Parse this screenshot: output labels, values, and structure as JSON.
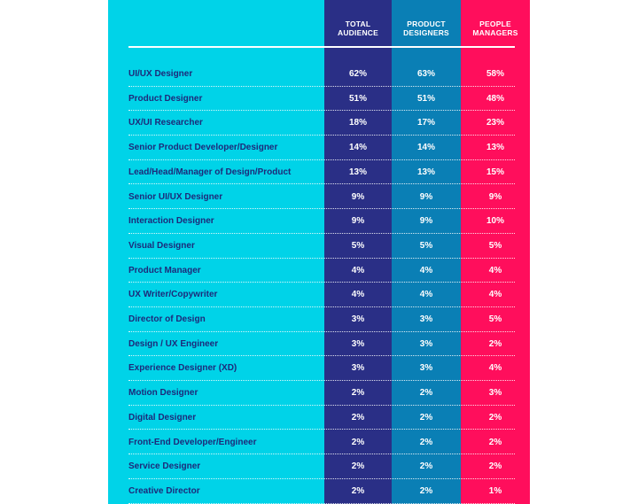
{
  "chart_data": {
    "type": "table",
    "columns": [
      {
        "key": "total",
        "label": "TOTAL\nAUDIENCE"
      },
      {
        "key": "prod",
        "label": "PRODUCT\nDESIGNERS"
      },
      {
        "key": "mgr",
        "label": "PEOPLE\nMANAGERS"
      }
    ],
    "rows": [
      {
        "role": "UI/UX Designer",
        "total": "62%",
        "prod": "63%",
        "mgr": "58%"
      },
      {
        "role": "Product Designer",
        "total": "51%",
        "prod": "51%",
        "mgr": "48%"
      },
      {
        "role": "UX/UI Researcher",
        "total": "18%",
        "prod": "17%",
        "mgr": "23%"
      },
      {
        "role": "Senior Product Developer/Designer",
        "total": "14%",
        "prod": "14%",
        "mgr": "13%"
      },
      {
        "role": "Lead/Head/Manager of Design/Product",
        "total": "13%",
        "prod": "13%",
        "mgr": "15%"
      },
      {
        "role": "Senior UI/UX Designer",
        "total": "9%",
        "prod": "9%",
        "mgr": "9%"
      },
      {
        "role": "Interaction Designer",
        "total": "9%",
        "prod": "9%",
        "mgr": "10%"
      },
      {
        "role": "Visual Designer",
        "total": "5%",
        "prod": "5%",
        "mgr": "5%"
      },
      {
        "role": "Product Manager",
        "total": "4%",
        "prod": "4%",
        "mgr": "4%"
      },
      {
        "role": "UX Writer/Copywriter",
        "total": "4%",
        "prod": "4%",
        "mgr": "4%"
      },
      {
        "role": "Director of Design",
        "total": "3%",
        "prod": "3%",
        "mgr": "5%"
      },
      {
        "role": "Design / UX Engineer",
        "total": "3%",
        "prod": "3%",
        "mgr": "2%"
      },
      {
        "role": "Experience Designer (XD)",
        "total": "3%",
        "prod": "3%",
        "mgr": "4%"
      },
      {
        "role": "Motion Designer",
        "total": "2%",
        "prod": "2%",
        "mgr": "3%"
      },
      {
        "role": "Digital Designer",
        "total": "2%",
        "prod": "2%",
        "mgr": "2%"
      },
      {
        "role": "Front-End Developer/Engineer",
        "total": "2%",
        "prod": "2%",
        "mgr": "2%"
      },
      {
        "role": "Service Designer",
        "total": "2%",
        "prod": "2%",
        "mgr": "2%"
      },
      {
        "role": "Creative Director",
        "total": "2%",
        "prod": "2%",
        "mgr": "1%"
      }
    ],
    "colors": {
      "panel": "#00d3e8",
      "total": "#2a2f86",
      "prod": "#0a7fb5",
      "mgr": "#ff0e5c",
      "role_text": "#1d2a7a"
    }
  }
}
